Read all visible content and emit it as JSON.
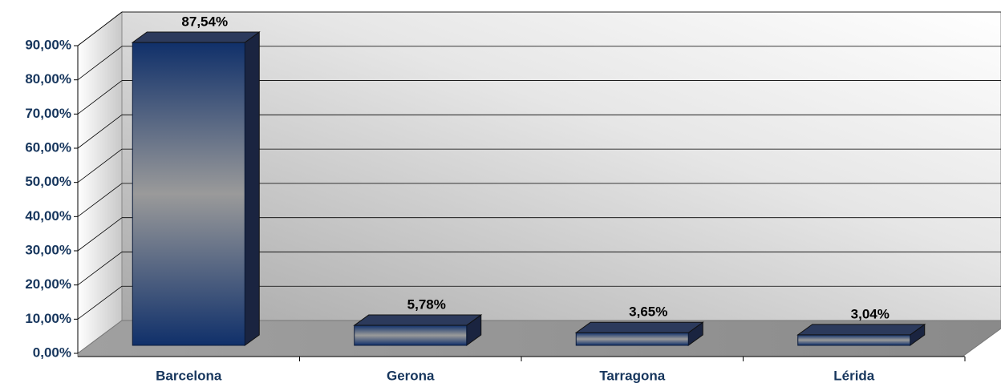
{
  "chart_data": {
    "type": "bar3d",
    "categories": [
      "Barcelona",
      "Gerona",
      "Tarragona",
      "Lérida"
    ],
    "values": [
      87.54,
      5.78,
      3.65,
      3.04
    ],
    "value_labels": [
      "87,54%",
      "5,78%",
      "3,65%",
      "3,04%"
    ],
    "color": "#10306a",
    "ylim": [
      0,
      90
    ],
    "yticks": [
      {
        "value": 0,
        "label": "0,00%"
      },
      {
        "value": 10,
        "label": "10,00%"
      },
      {
        "value": 20,
        "label": "20,00%"
      },
      {
        "value": 30,
        "label": "30,00%"
      },
      {
        "value": 40,
        "label": "40,00%"
      },
      {
        "value": 50,
        "label": "50,00%"
      },
      {
        "value": 60,
        "label": "60,00%"
      },
      {
        "value": 70,
        "label": "70,00%"
      },
      {
        "value": 80,
        "label": "80,00%"
      },
      {
        "value": 90,
        "label": "90,00%"
      }
    ],
    "grid": true
  }
}
